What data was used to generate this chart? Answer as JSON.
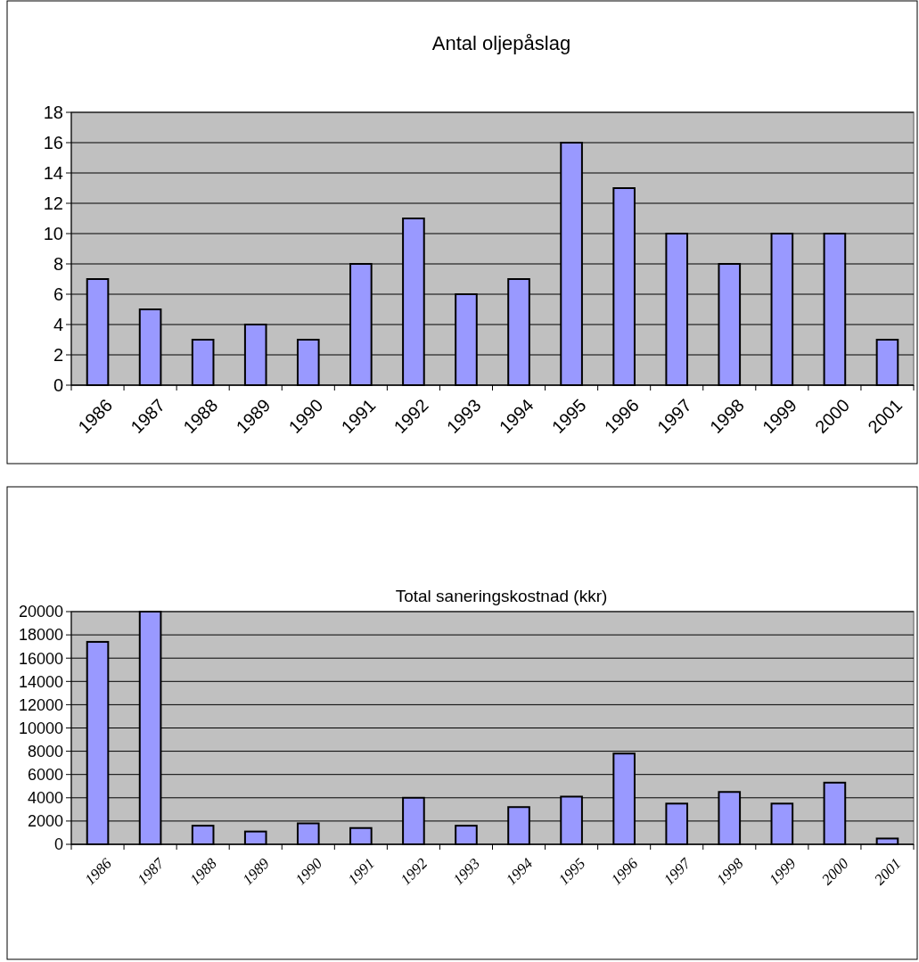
{
  "chart_data": [
    {
      "type": "bar",
      "title": "Antal oljepåslag",
      "categories": [
        "1986",
        "1987",
        "1988",
        "1989",
        "1990",
        "1991",
        "1992",
        "1993",
        "1994",
        "1995",
        "1996",
        "1997",
        "1998",
        "1999",
        "2000",
        "2001"
      ],
      "values": [
        7,
        5,
        3,
        4,
        3,
        8,
        11,
        6,
        7,
        16,
        13,
        10,
        8,
        10,
        10,
        3
      ],
      "color": "#9999ff",
      "ylim": [
        0,
        18
      ],
      "yticks": [
        0,
        2,
        4,
        6,
        8,
        10,
        12,
        14,
        16,
        18
      ],
      "grid": "y"
    },
    {
      "type": "bar",
      "title": "Total saneringskostnad (kkr)",
      "categories": [
        "1986",
        "1987",
        "1988",
        "1989",
        "1990",
        "1991",
        "1992",
        "1993",
        "1994",
        "1995",
        "1996",
        "1997",
        "1998",
        "1999",
        "2000",
        "2001"
      ],
      "values": [
        17400,
        20000,
        1600,
        1100,
        1800,
        1400,
        4000,
        1600,
        3200,
        4100,
        7800,
        3500,
        4500,
        3500,
        5300,
        500
      ],
      "color": "#9999ff",
      "ylim": [
        0,
        20000
      ],
      "yticks": [
        0,
        2000,
        4000,
        6000,
        8000,
        10000,
        12000,
        14000,
        16000,
        18000,
        20000
      ],
      "grid": "y"
    }
  ]
}
